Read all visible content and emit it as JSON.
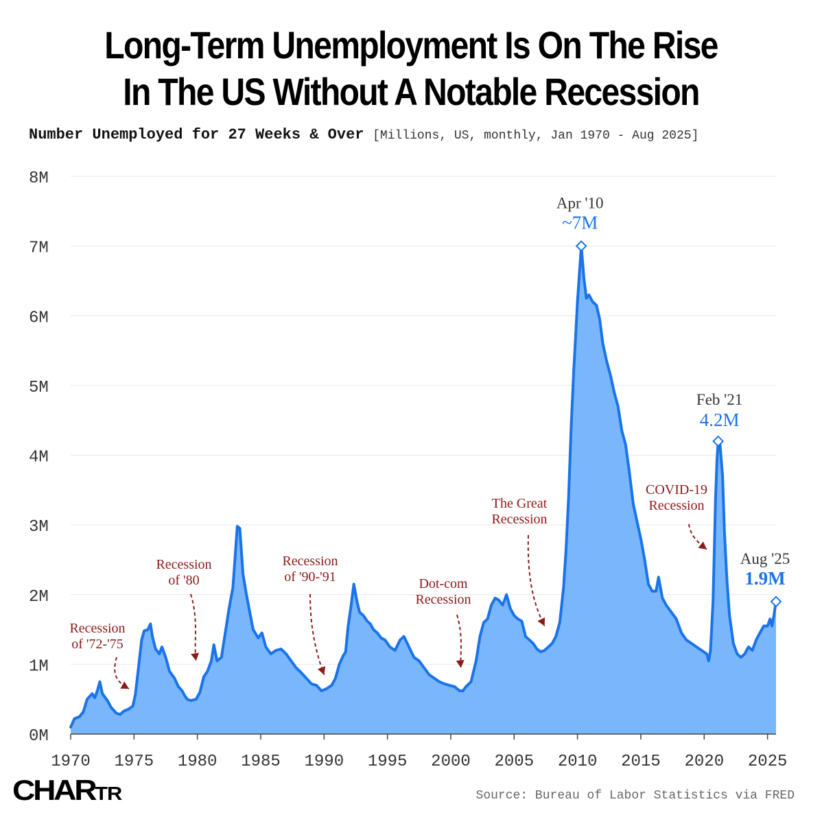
{
  "header": {
    "title_line1": "Long-Term Unemployment Is On The Rise",
    "title_line2": "In The US Without A Notable Recession",
    "subtitle_lead": "Number Unemployed for 27 Weeks & Over",
    "subtitle_meta": "[Millions, US, monthly, Jan 1970 - Aug 2025]"
  },
  "footer": {
    "logo_main": "CHAR",
    "logo_small": "TR",
    "source": "Source: Bureau of Labor Statistics via FRED"
  },
  "colors": {
    "line": "#1a73e8",
    "fill": "#7ab6fb",
    "annotation": "#8b1a1a"
  },
  "chart_data": {
    "type": "area",
    "title": "Number Unemployed for 27 Weeks & Over",
    "xlabel": "",
    "ylabel": "Millions",
    "xlim": [
      1970,
      2025.67
    ],
    "ylim": [
      0,
      8
    ],
    "x_ticks": [
      1970,
      1975,
      1980,
      1985,
      1990,
      1995,
      2000,
      2005,
      2010,
      2015,
      2020,
      2025
    ],
    "y_ticks": [
      {
        "value": 0,
        "label": "0M"
      },
      {
        "value": 1,
        "label": "1M"
      },
      {
        "value": 2,
        "label": "2M"
      },
      {
        "value": 3,
        "label": "3M"
      },
      {
        "value": 4,
        "label": "4M"
      },
      {
        "value": 5,
        "label": "5M"
      },
      {
        "value": 6,
        "label": "6M"
      },
      {
        "value": 7,
        "label": "7M"
      },
      {
        "value": 8,
        "label": "8M"
      }
    ],
    "series": [
      {
        "name": "Unemployed 27 weeks & over",
        "points": [
          [
            1970.0,
            0.1
          ],
          [
            1970.3,
            0.22
          ],
          [
            1970.7,
            0.25
          ],
          [
            1971.0,
            0.32
          ],
          [
            1971.3,
            0.5
          ],
          [
            1971.7,
            0.58
          ],
          [
            1971.9,
            0.52
          ],
          [
            1972.1,
            0.62
          ],
          [
            1972.3,
            0.75
          ],
          [
            1972.5,
            0.58
          ],
          [
            1972.9,
            0.48
          ],
          [
            1973.2,
            0.38
          ],
          [
            1973.6,
            0.3
          ],
          [
            1973.9,
            0.28
          ],
          [
            1974.2,
            0.33
          ],
          [
            1974.6,
            0.36
          ],
          [
            1974.9,
            0.4
          ],
          [
            1975.1,
            0.56
          ],
          [
            1975.35,
            0.95
          ],
          [
            1975.6,
            1.35
          ],
          [
            1975.8,
            1.48
          ],
          [
            1976.1,
            1.5
          ],
          [
            1976.3,
            1.58
          ],
          [
            1976.45,
            1.4
          ],
          [
            1976.7,
            1.22
          ],
          [
            1977.0,
            1.15
          ],
          [
            1977.2,
            1.25
          ],
          [
            1977.5,
            1.1
          ],
          [
            1977.8,
            0.9
          ],
          [
            1978.2,
            0.8
          ],
          [
            1978.5,
            0.68
          ],
          [
            1978.8,
            0.62
          ],
          [
            1979.0,
            0.55
          ],
          [
            1979.2,
            0.5
          ],
          [
            1979.5,
            0.48
          ],
          [
            1979.9,
            0.5
          ],
          [
            1980.2,
            0.6
          ],
          [
            1980.5,
            0.82
          ],
          [
            1980.8,
            0.9
          ],
          [
            1981.1,
            1.05
          ],
          [
            1981.3,
            1.28
          ],
          [
            1981.55,
            1.05
          ],
          [
            1981.9,
            1.1
          ],
          [
            1982.2,
            1.45
          ],
          [
            1982.5,
            1.8
          ],
          [
            1982.8,
            2.1
          ],
          [
            1983.0,
            2.6
          ],
          [
            1983.15,
            2.98
          ],
          [
            1983.35,
            2.95
          ],
          [
            1983.6,
            2.3
          ],
          [
            1983.85,
            2.02
          ],
          [
            1984.1,
            1.78
          ],
          [
            1984.4,
            1.5
          ],
          [
            1984.8,
            1.38
          ],
          [
            1985.1,
            1.45
          ],
          [
            1985.4,
            1.25
          ],
          [
            1985.8,
            1.15
          ],
          [
            1986.2,
            1.2
          ],
          [
            1986.6,
            1.22
          ],
          [
            1987.0,
            1.15
          ],
          [
            1987.4,
            1.05
          ],
          [
            1987.8,
            0.95
          ],
          [
            1988.2,
            0.88
          ],
          [
            1988.6,
            0.8
          ],
          [
            1989.0,
            0.72
          ],
          [
            1989.4,
            0.7
          ],
          [
            1989.8,
            0.62
          ],
          [
            1990.2,
            0.65
          ],
          [
            1990.6,
            0.7
          ],
          [
            1990.9,
            0.8
          ],
          [
            1991.2,
            1.0
          ],
          [
            1991.5,
            1.12
          ],
          [
            1991.7,
            1.18
          ],
          [
            1991.9,
            1.55
          ],
          [
            1992.1,
            1.8
          ],
          [
            1992.35,
            2.15
          ],
          [
            1992.6,
            1.9
          ],
          [
            1992.8,
            1.75
          ],
          [
            1993.1,
            1.7
          ],
          [
            1993.4,
            1.62
          ],
          [
            1993.65,
            1.58
          ],
          [
            1993.9,
            1.5
          ],
          [
            1994.2,
            1.45
          ],
          [
            1994.5,
            1.38
          ],
          [
            1994.8,
            1.35
          ],
          [
            1995.2,
            1.25
          ],
          [
            1995.6,
            1.2
          ],
          [
            1996.0,
            1.35
          ],
          [
            1996.3,
            1.4
          ],
          [
            1996.7,
            1.25
          ],
          [
            1997.1,
            1.1
          ],
          [
            1997.5,
            1.05
          ],
          [
            1997.9,
            0.95
          ],
          [
            1998.3,
            0.85
          ],
          [
            1998.7,
            0.8
          ],
          [
            1999.1,
            0.75
          ],
          [
            1999.5,
            0.72
          ],
          [
            1999.9,
            0.7
          ],
          [
            2000.3,
            0.68
          ],
          [
            2000.7,
            0.62
          ],
          [
            2000.95,
            0.62
          ],
          [
            2001.2,
            0.68
          ],
          [
            2001.6,
            0.75
          ],
          [
            2002.0,
            1.05
          ],
          [
            2002.3,
            1.4
          ],
          [
            2002.6,
            1.6
          ],
          [
            2002.9,
            1.65
          ],
          [
            2003.2,
            1.85
          ],
          [
            2003.5,
            1.95
          ],
          [
            2003.8,
            1.92
          ],
          [
            2004.1,
            1.85
          ],
          [
            2004.4,
            2.0
          ],
          [
            2004.7,
            1.8
          ],
          [
            2005.0,
            1.7
          ],
          [
            2005.3,
            1.65
          ],
          [
            2005.6,
            1.62
          ],
          [
            2005.9,
            1.4
          ],
          [
            2006.2,
            1.35
          ],
          [
            2006.5,
            1.3
          ],
          [
            2006.8,
            1.22
          ],
          [
            2007.1,
            1.18
          ],
          [
            2007.4,
            1.2
          ],
          [
            2007.7,
            1.25
          ],
          [
            2008.0,
            1.3
          ],
          [
            2008.3,
            1.4
          ],
          [
            2008.6,
            1.6
          ],
          [
            2008.9,
            2.1
          ],
          [
            2009.1,
            2.65
          ],
          [
            2009.3,
            3.4
          ],
          [
            2009.5,
            4.4
          ],
          [
            2009.7,
            5.2
          ],
          [
            2009.85,
            5.7
          ],
          [
            2010.0,
            6.2
          ],
          [
            2010.15,
            6.6
          ],
          [
            2010.3,
            7.0
          ],
          [
            2010.5,
            6.55
          ],
          [
            2010.7,
            6.25
          ],
          [
            2010.9,
            6.3
          ],
          [
            2011.2,
            6.2
          ],
          [
            2011.5,
            6.15
          ],
          [
            2011.75,
            5.95
          ],
          [
            2012.0,
            5.6
          ],
          [
            2012.3,
            5.35
          ],
          [
            2012.6,
            5.15
          ],
          [
            2012.9,
            4.9
          ],
          [
            2013.2,
            4.7
          ],
          [
            2013.5,
            4.35
          ],
          [
            2013.8,
            4.15
          ],
          [
            2014.1,
            3.75
          ],
          [
            2014.4,
            3.3
          ],
          [
            2014.7,
            3.05
          ],
          [
            2015.0,
            2.8
          ],
          [
            2015.3,
            2.5
          ],
          [
            2015.6,
            2.15
          ],
          [
            2015.9,
            2.05
          ],
          [
            2016.2,
            2.05
          ],
          [
            2016.4,
            2.25
          ],
          [
            2016.7,
            1.95
          ],
          [
            2017.0,
            1.85
          ],
          [
            2017.4,
            1.75
          ],
          [
            2017.8,
            1.65
          ],
          [
            2018.2,
            1.45
          ],
          [
            2018.6,
            1.35
          ],
          [
            2019.0,
            1.3
          ],
          [
            2019.4,
            1.25
          ],
          [
            2019.8,
            1.2
          ],
          [
            2020.2,
            1.15
          ],
          [
            2020.35,
            1.05
          ],
          [
            2020.5,
            1.2
          ],
          [
            2020.7,
            1.9
          ],
          [
            2020.9,
            3.4
          ],
          [
            2021.0,
            3.9
          ],
          [
            2021.1,
            4.2
          ],
          [
            2021.25,
            4.15
          ],
          [
            2021.45,
            3.7
          ],
          [
            2021.6,
            2.9
          ],
          [
            2021.8,
            2.2
          ],
          [
            2022.0,
            1.7
          ],
          [
            2022.3,
            1.3
          ],
          [
            2022.6,
            1.15
          ],
          [
            2022.9,
            1.1
          ],
          [
            2023.2,
            1.15
          ],
          [
            2023.5,
            1.25
          ],
          [
            2023.8,
            1.2
          ],
          [
            2024.1,
            1.35
          ],
          [
            2024.4,
            1.45
          ],
          [
            2024.7,
            1.55
          ],
          [
            2025.0,
            1.55
          ],
          [
            2025.2,
            1.65
          ],
          [
            2025.35,
            1.55
          ],
          [
            2025.5,
            1.7
          ],
          [
            2025.67,
            1.9
          ]
        ]
      }
    ],
    "peaks": [
      {
        "x": 2010.3,
        "y": 7.0,
        "date_label": "Apr '10",
        "value_label": "~7M"
      },
      {
        "x": 2021.1,
        "y": 4.2,
        "date_label": "Feb '21",
        "value_label": "4.2M"
      },
      {
        "x": 2025.67,
        "y": 1.9,
        "date_label": "Aug '25",
        "value_label": "1.9M"
      }
    ],
    "annotations": [
      {
        "lines": [
          "Recession",
          "of '72-'75"
        ],
        "arrow_x": 1974.6,
        "arrow_y": 0.65
      },
      {
        "lines": [
          "Recession",
          "of '80"
        ],
        "arrow_x": 1979.9,
        "arrow_y": 1.05
      },
      {
        "lines": [
          "Recession",
          "of '90-'91"
        ],
        "arrow_x": 1990.0,
        "arrow_y": 0.85
      },
      {
        "lines": [
          "Dot-com",
          "Recession"
        ],
        "arrow_x": 2000.8,
        "arrow_y": 0.95
      },
      {
        "lines": [
          "The Great",
          "Recession"
        ],
        "arrow_x": 2007.4,
        "arrow_y": 1.55
      },
      {
        "lines": [
          "COVID-19",
          "Recession"
        ],
        "arrow_x": 2020.2,
        "arrow_y": 2.65
      }
    ]
  }
}
